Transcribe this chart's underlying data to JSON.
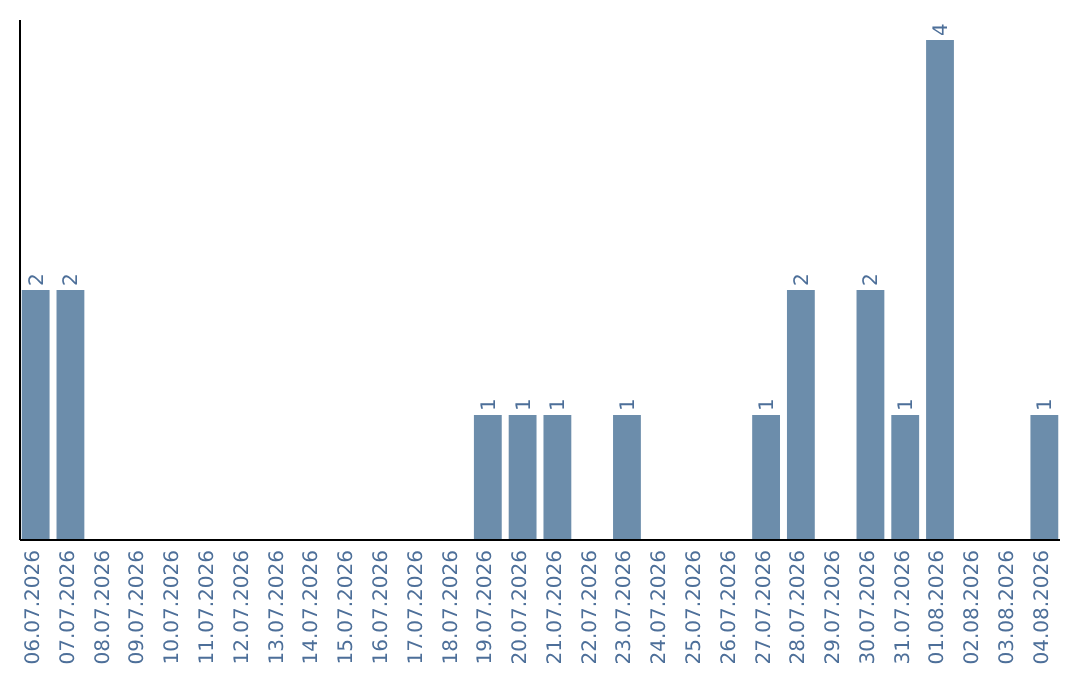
{
  "chart_data": {
    "type": "bar",
    "categories": [
      "06.07.2026",
      "07.07.2026",
      "08.07.2026",
      "09.07.2026",
      "10.07.2026",
      "11.07.2026",
      "12.07.2026",
      "13.07.2026",
      "14.07.2026",
      "15.07.2026",
      "16.07.2026",
      "17.07.2026",
      "18.07.2026",
      "19.07.2026",
      "20.07.2026",
      "21.07.2026",
      "22.07.2026",
      "23.07.2026",
      "24.07.2026",
      "25.07.2026",
      "26.07.2026",
      "27.07.2026",
      "28.07.2026",
      "29.07.2026",
      "30.07.2026",
      "31.07.2026",
      "01.08.2026",
      "02.08.2026",
      "03.08.2026",
      "04.08.2026"
    ],
    "values": [
      2,
      2,
      0,
      0,
      0,
      0,
      0,
      0,
      0,
      0,
      0,
      0,
      0,
      1,
      1,
      1,
      0,
      1,
      0,
      0,
      0,
      1,
      2,
      0,
      2,
      1,
      4,
      0,
      0,
      1
    ],
    "value_labels": [
      "2",
      "2",
      null,
      null,
      null,
      null,
      null,
      null,
      null,
      null,
      null,
      null,
      null,
      "1",
      "1",
      "1",
      null,
      "1",
      null,
      null,
      null,
      "1",
      "2",
      null,
      "2",
      "1",
      "4",
      null,
      null,
      "1"
    ],
    "color": "#6c8dab",
    "ylim": [
      0,
      4.16
    ],
    "tick_labels": "x"
  }
}
